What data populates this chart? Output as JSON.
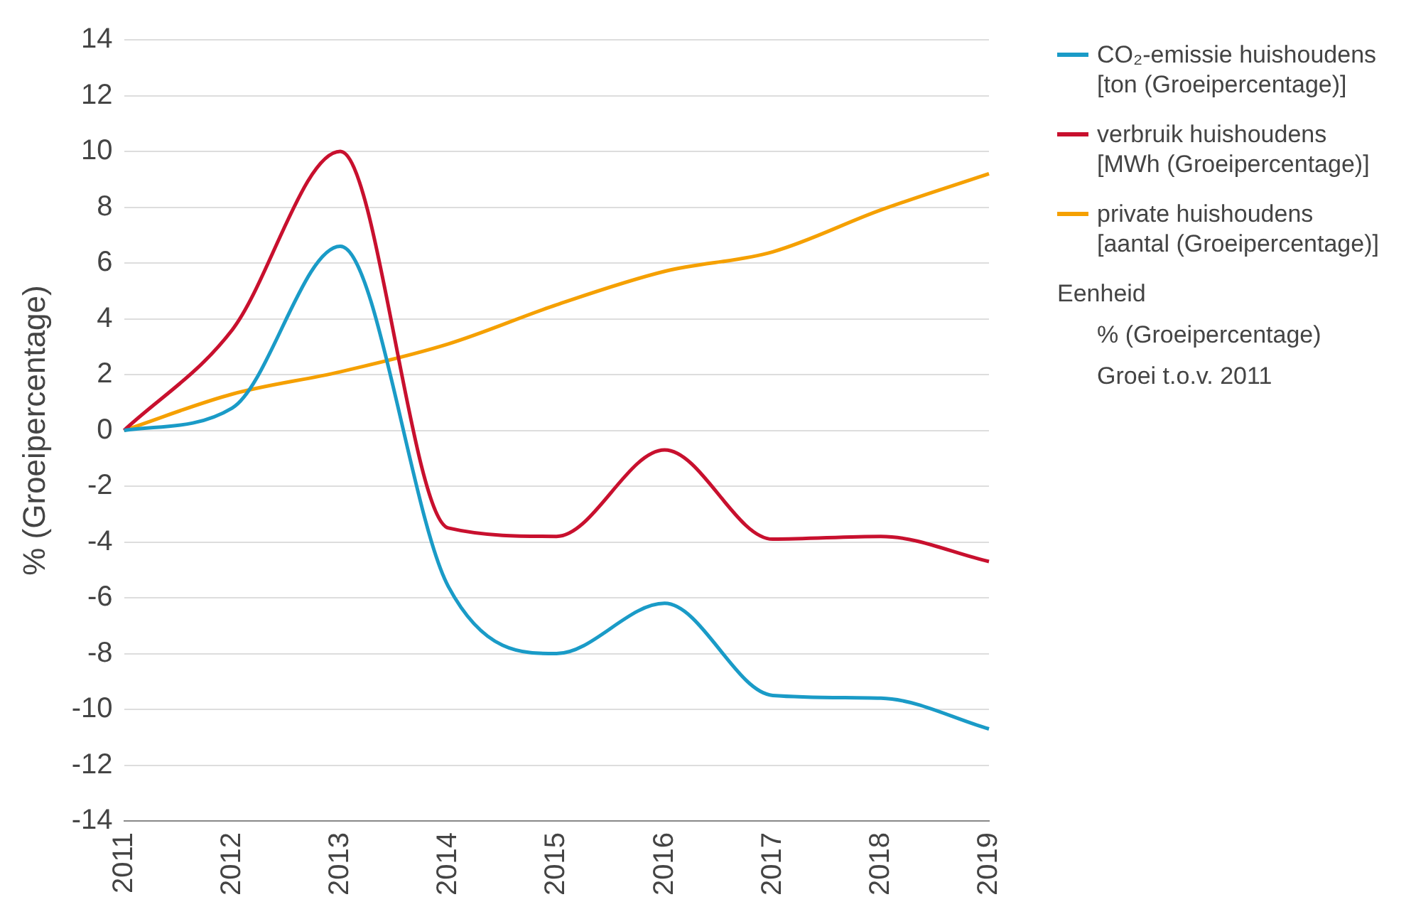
{
  "chart_data": {
    "type": "line",
    "ylabel": "% (Groeipercentage)",
    "categories": [
      "2011",
      "2012",
      "2013",
      "2014",
      "2015",
      "2016",
      "2017",
      "2018",
      "2019"
    ],
    "series": [
      {
        "name": "CO₂-emissie huishoudens [ton (Groeipercentage)]",
        "color": "#1a9bc7",
        "values": [
          0,
          0.8,
          6.6,
          -5.6,
          -8,
          -6.2,
          -9.5,
          -9.6,
          -10.7
        ]
      },
      {
        "name": "verbruik huishoudens [MWh (Groeipercentage)]",
        "color": "#c8102e",
        "values": [
          0,
          3.6,
          10,
          -3.5,
          -3.8,
          -0.7,
          -3.9,
          -3.8,
          -4.7
        ]
      },
      {
        "name": "private huishoudens [aantal (Groeipercentage)]",
        "color": "#f5a000",
        "values": [
          0,
          1.3,
          2.1,
          3.1,
          4.5,
          5.7,
          6.4,
          7.9,
          9.2
        ]
      }
    ],
    "ylim": [
      -14,
      14
    ],
    "yticks": [
      -14,
      -12,
      -10,
      -8,
      -6,
      -4,
      -2,
      0,
      2,
      4,
      6,
      8,
      10,
      12,
      14
    ],
    "grid": "y",
    "legend": "right",
    "marker": "none",
    "line_style": "solid",
    "annotations": [
      "Eenheid",
      "% (Groeipercentage)",
      "Groei t.o.v. 2011"
    ]
  }
}
